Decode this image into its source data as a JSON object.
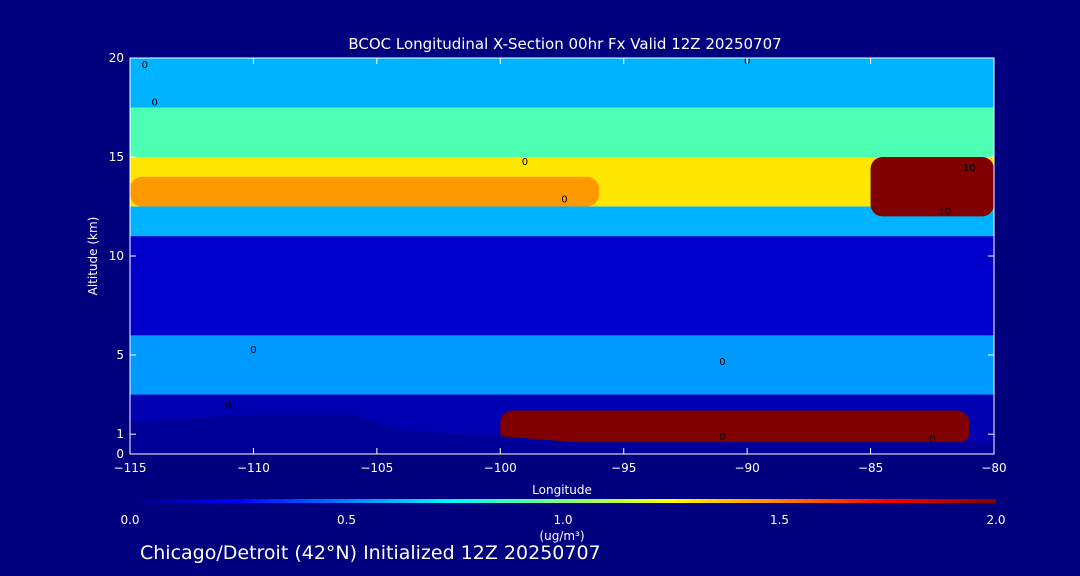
{
  "chart_data": {
    "type": "heatmap",
    "title": "BCOC Longitudinal X-Section 00hr  Fx Valid 12Z 20250707",
    "xlabel": "Longitude",
    "ylabel": "Altitude (km)",
    "xlim": [
      -115,
      -80
    ],
    "ylim": [
      0,
      20
    ],
    "x_ticks": [
      -115,
      -110,
      -105,
      -100,
      -95,
      -90,
      -85,
      -80
    ],
    "x_tick_labels": [
      "−115",
      "−110",
      "−105",
      "−100",
      "−95",
      "−90",
      "−85",
      "−80"
    ],
    "y_ticks": [
      0,
      1,
      5,
      10,
      15,
      20
    ],
    "y_tick_labels": [
      "0",
      "1",
      "5",
      "10",
      "15",
      "20"
    ],
    "colorbar": {
      "min": 0.0,
      "max": 2.0,
      "ticks": [
        0.0,
        0.5,
        1.0,
        1.5,
        2.0
      ],
      "tick_labels": [
        "0.0",
        "0.5",
        "1.0",
        "1.5",
        "2.0"
      ],
      "units": "(ug/m³)",
      "colormap": [
        "#00007f",
        "#0000ff",
        "#0080ff",
        "#00ffff",
        "#80ff80",
        "#ffff00",
        "#ff8000",
        "#ff0000",
        "#800000"
      ]
    },
    "bands": [
      {
        "alt_min": 0,
        "alt_max": 3,
        "value": 0.1,
        "description": "near-surface"
      },
      {
        "alt_min": 3,
        "alt_max": 6,
        "value": 0.55
      },
      {
        "alt_min": 6,
        "alt_max": 11,
        "value": 0.15
      },
      {
        "alt_min": 11,
        "alt_max": 12.5,
        "value": 0.6
      },
      {
        "alt_min": 12.5,
        "alt_max": 15,
        "value": 1.3
      },
      {
        "alt_min": 15,
        "alt_max": 17.5,
        "value": 0.9
      },
      {
        "alt_min": 17.5,
        "alt_max": 20,
        "value": 0.6
      }
    ],
    "hotspots": [
      {
        "lon_min": -85,
        "lon_max": -80,
        "alt_min": 12,
        "alt_max": 15,
        "value": 2.0
      },
      {
        "lon_min": -100,
        "lon_max": -81,
        "alt_min": 0.5,
        "alt_max": 2.2,
        "value": 2.0
      },
      {
        "lon_min": -115,
        "lon_max": -96,
        "alt_min": 12.5,
        "alt_max": 14,
        "value": 1.45
      }
    ],
    "terrain": [
      [
        -115,
        1.6
      ],
      [
        -110,
        2.0
      ],
      [
        -106,
        2.0
      ],
      [
        -104,
        1.2
      ],
      [
        -100,
        0.9
      ],
      [
        -97,
        0.6
      ],
      [
        -80,
        0.6
      ]
    ],
    "contour_labels": [
      {
        "lon": -114.4,
        "alt": 19.5,
        "text": "0"
      },
      {
        "lon": -114,
        "alt": 17.6,
        "text": "0"
      },
      {
        "lon": -90,
        "alt": 19.7,
        "text": "0"
      },
      {
        "lon": -99,
        "alt": 14.6,
        "text": "0"
      },
      {
        "lon": -97.4,
        "alt": 12.7,
        "text": "0"
      },
      {
        "lon": -110,
        "alt": 5.1,
        "text": "0"
      },
      {
        "lon": -111,
        "alt": 2.3,
        "text": "0"
      },
      {
        "lon": -91,
        "alt": 0.7,
        "text": "0"
      },
      {
        "lon": -91,
        "alt": 4.5,
        "text": "0"
      },
      {
        "lon": -82.5,
        "alt": 0.6,
        "text": "0"
      },
      {
        "lon": -81,
        "alt": 14.3,
        "text": "10"
      },
      {
        "lon": -82,
        "alt": 12.1,
        "text": "10"
      }
    ]
  },
  "footer": {
    "text": "Chicago/Detroit (42°N) Initialized 12Z 20250707"
  }
}
